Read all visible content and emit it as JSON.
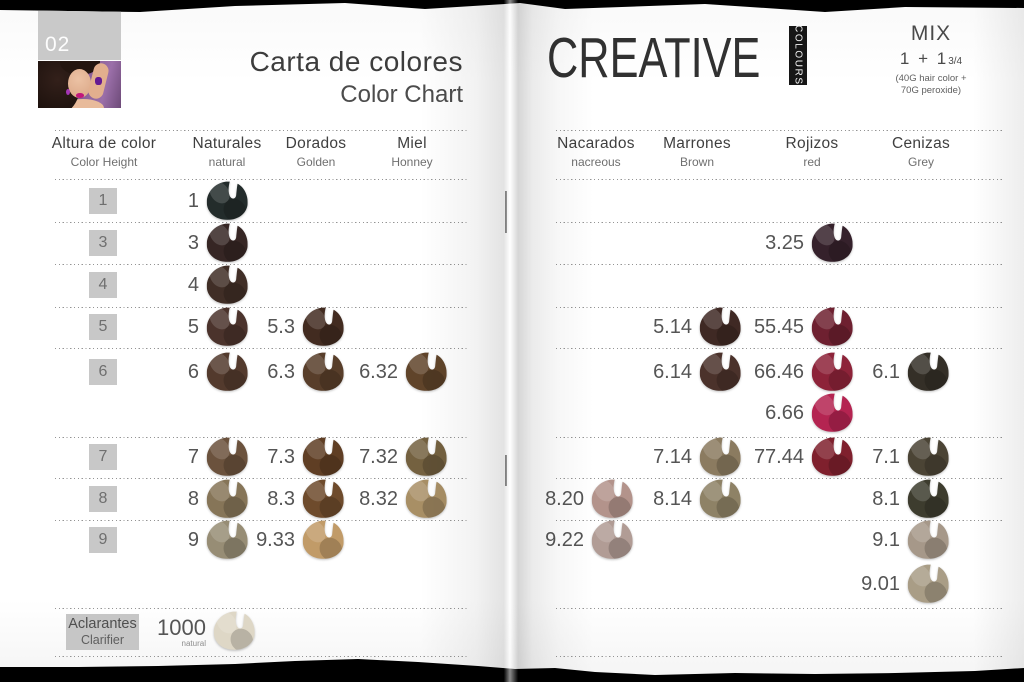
{
  "page_label": "02",
  "left_page": {
    "title": "Carta de colores",
    "subtitle": "Color Chart",
    "columns": [
      {
        "id": "altura",
        "label": "Altura de color",
        "sublabel": "Color Height"
      },
      {
        "id": "naturales",
        "label": "Naturales",
        "sublabel": "natural"
      },
      {
        "id": "dorados",
        "label": "Dorados",
        "sublabel": "Golden"
      },
      {
        "id": "miel",
        "label": "Miel",
        "sublabel": "Honney"
      }
    ],
    "row_tabs": [
      {
        "row": "r1",
        "label": "1"
      },
      {
        "row": "r3",
        "label": "3"
      },
      {
        "row": "r4",
        "label": "4"
      },
      {
        "row": "r5",
        "label": "5"
      },
      {
        "row": "r6a",
        "label": "6"
      },
      {
        "row": "r7",
        "label": "7"
      },
      {
        "row": "r8",
        "label": "8"
      },
      {
        "row": "r9a",
        "label": "9"
      }
    ],
    "clarifier_tab": {
      "label": "Aclarantes",
      "sublabel": "Clarifier"
    }
  },
  "right_page": {
    "brand": "CREATIVE",
    "brand_badge": "COLOURS",
    "mix": {
      "heading": "MIX",
      "ratio": "1 + 1",
      "fraction": "3/4",
      "note1": "(40G hair color +",
      "note2": "70G peroxide)"
    },
    "columns": [
      {
        "id": "nacarados",
        "label": "Nacarados",
        "sublabel": "nacreous"
      },
      {
        "id": "marrones",
        "label": "Marrones",
        "sublabel": "Brown"
      },
      {
        "id": "rojizos",
        "label": "Rojizos",
        "sublabel": "red"
      },
      {
        "id": "cenizas",
        "label": "Cenizas",
        "sublabel": "Grey"
      }
    ]
  },
  "swatches": [
    {
      "page": "left",
      "row": "r1",
      "col": "naturales",
      "label": "1",
      "color": "#232c2b"
    },
    {
      "page": "left",
      "row": "r3",
      "col": "naturales",
      "label": "3",
      "color": "#362624"
    },
    {
      "page": "left",
      "row": "r4",
      "col": "naturales",
      "label": "4",
      "color": "#402e26"
    },
    {
      "page": "left",
      "row": "r5",
      "col": "naturales",
      "label": "5",
      "color": "#4b332c"
    },
    {
      "page": "left",
      "row": "r5",
      "col": "dorados",
      "label": "5.3",
      "color": "#422b20"
    },
    {
      "page": "left",
      "row": "r6a",
      "col": "naturales",
      "label": "6",
      "color": "#533a2d"
    },
    {
      "page": "left",
      "row": "r6a",
      "col": "dorados",
      "label": "6.3",
      "color": "#583e2a"
    },
    {
      "page": "left",
      "row": "r6a",
      "col": "miel",
      "label": "6.32",
      "color": "#60442a"
    },
    {
      "page": "left",
      "row": "r7",
      "col": "naturales",
      "label": "7",
      "color": "#6b523d"
    },
    {
      "page": "left",
      "row": "r7",
      "col": "dorados",
      "label": "7.3",
      "color": "#5f3e24"
    },
    {
      "page": "left",
      "row": "r7",
      "col": "miel",
      "label": "7.32",
      "color": "#746140"
    },
    {
      "page": "left",
      "row": "r8",
      "col": "naturales",
      "label": "8",
      "color": "#867558"
    },
    {
      "page": "left",
      "row": "r8",
      "col": "dorados",
      "label": "8.3",
      "color": "#6e4b2c"
    },
    {
      "page": "left",
      "row": "r8",
      "col": "miel",
      "label": "8.32",
      "color": "#a88f65"
    },
    {
      "page": "left",
      "row": "r9a",
      "col": "naturales",
      "label": "9",
      "color": "#978d75"
    },
    {
      "page": "left",
      "row": "r9a",
      "col": "dorados",
      "label": "9.33",
      "color": "#c19b68"
    },
    {
      "page": "left",
      "row": "aclarantes",
      "col": "clarifier",
      "label": "1000",
      "sublabel": "natural",
      "color": "#ded7c6"
    },
    {
      "page": "right",
      "row": "r3",
      "col": "rojizos",
      "label": "3.25",
      "color": "#35212b"
    },
    {
      "page": "right",
      "row": "r5",
      "col": "marrones",
      "label": "5.14",
      "color": "#3f2924"
    },
    {
      "page": "right",
      "row": "r5",
      "col": "rojizos",
      "label": "55.45",
      "color": "#6e2030"
    },
    {
      "page": "right",
      "row": "r6a",
      "col": "marrones",
      "label": "6.14",
      "color": "#4b322b"
    },
    {
      "page": "right",
      "row": "r6a",
      "col": "rojizos",
      "label": "66.46",
      "color": "#8d2339"
    },
    {
      "page": "right",
      "row": "r6a",
      "col": "cenizas",
      "label": "6.1",
      "color": "#342f27"
    },
    {
      "page": "right",
      "row": "r6b",
      "col": "rojizos",
      "label": "6.66",
      "color": "#b42451"
    },
    {
      "page": "right",
      "row": "r7",
      "col": "marrones",
      "label": "7.14",
      "color": "#8b7b60"
    },
    {
      "page": "right",
      "row": "r7",
      "col": "rojizos",
      "label": "77.44",
      "color": "#7f202d"
    },
    {
      "page": "right",
      "row": "r7",
      "col": "cenizas",
      "label": "7.1",
      "color": "#4b4435"
    },
    {
      "page": "right",
      "row": "r8",
      "col": "nacarados",
      "label": "8.20",
      "color": "#b3938b"
    },
    {
      "page": "right",
      "row": "r8",
      "col": "marrones",
      "label": "8.14",
      "color": "#8e8266"
    },
    {
      "page": "right",
      "row": "r8",
      "col": "cenizas",
      "label": "8.1",
      "color": "#3d3c2e"
    },
    {
      "page": "right",
      "row": "r9a",
      "col": "nacarados",
      "label": "9.22",
      "color": "#b19c95"
    },
    {
      "page": "right",
      "row": "r9a",
      "col": "cenizas",
      "label": "9.1",
      "color": "#a69889"
    },
    {
      "page": "right",
      "row": "r9b",
      "col": "cenizas",
      "label": "9.01",
      "color": "#a99d86"
    }
  ]
}
